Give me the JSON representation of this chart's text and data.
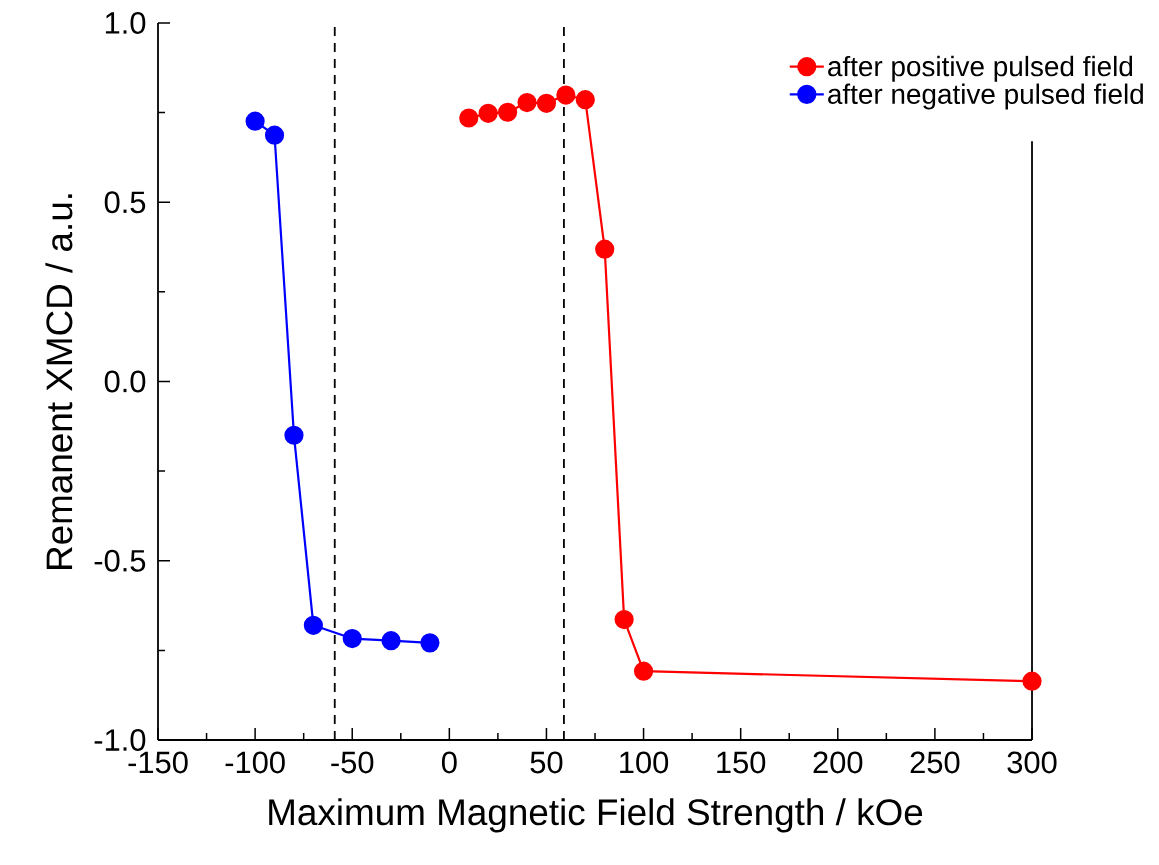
{
  "chart_data": {
    "type": "line",
    "xlabel": "Maximum Magnetic Field Strength / kOe",
    "ylabel": "Remanent XMCD / a.u.",
    "series": [
      {
        "name": "after positive pulsed field",
        "color": "#ff0000",
        "x": [
          10,
          20,
          30,
          40,
          50,
          60,
          70,
          80,
          90,
          100,
          300
        ],
        "values": [
          0.735,
          0.748,
          0.751,
          0.778,
          0.776,
          0.799,
          0.786,
          0.369,
          -0.664,
          -0.808,
          -0.836
        ]
      },
      {
        "name": "after negative pulsed field",
        "color": "#0000ff",
        "x": [
          -100,
          -90,
          -80,
          -70,
          -50,
          -30,
          -10
        ],
        "values": [
          0.726,
          0.687,
          -0.15,
          -0.68,
          -0.717,
          -0.723,
          -0.729
        ]
      }
    ],
    "xlim": [
      -150,
      300
    ],
    "ylim": [
      -1.0,
      1.0
    ],
    "xticks": [
      -150,
      -100,
      -50,
      0,
      50,
      100,
      150,
      200,
      250,
      300
    ],
    "yticks": [
      {
        "value": -1.0,
        "label": "-1.0"
      },
      {
        "value": -0.5,
        "label": "-0.5"
      },
      {
        "value": 0.0,
        "label": "0.0"
      },
      {
        "value": 0.5,
        "label": "0.5"
      },
      {
        "value": 1.0,
        "label": "1.0"
      }
    ],
    "ref_lines": [
      {
        "axis": "x",
        "value": -59,
        "color": "#000000",
        "line_style": "dashed"
      },
      {
        "axis": "x",
        "value": 59,
        "color": "#000000",
        "line_style": "dashed"
      }
    ],
    "marker": "circle",
    "line_style": "solid",
    "legend": "top right",
    "grid": false
  }
}
